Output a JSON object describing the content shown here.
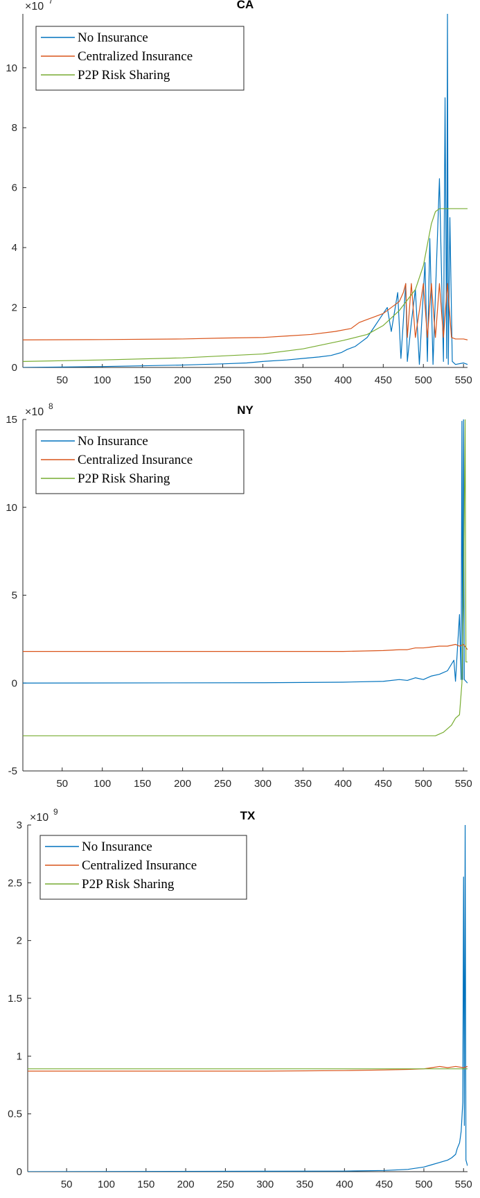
{
  "chart_data": [
    {
      "type": "line",
      "title": "CA",
      "exponent_label": "×10",
      "exponent_power": "7",
      "scale": 10000000,
      "xlim": [
        1,
        555
      ],
      "ylim": [
        0,
        11.8
      ],
      "xticks": [
        50,
        100,
        150,
        200,
        250,
        300,
        350,
        400,
        450,
        500,
        550
      ],
      "yticks": [
        0,
        2,
        4,
        6,
        8,
        10
      ],
      "legend_position": "top-left",
      "series": [
        {
          "name": "No Insurance",
          "color": "#0072BD",
          "x": [
            1,
            100,
            200,
            250,
            280,
            300,
            330,
            350,
            370,
            385,
            398,
            405,
            415,
            420,
            430,
            435,
            440,
            445,
            450,
            455,
            460,
            468,
            472,
            478,
            480,
            485,
            490,
            495,
            502,
            505,
            508,
            512,
            520,
            525,
            527,
            529,
            530,
            531,
            533,
            536,
            540,
            550,
            555
          ],
          "y": [
            0,
            0.03,
            0.08,
            0.12,
            0.15,
            0.2,
            0.25,
            0.3,
            0.35,
            0.4,
            0.5,
            0.6,
            0.7,
            0.8,
            1.0,
            1.2,
            1.4,
            1.6,
            1.8,
            2.0,
            1.2,
            2.5,
            0.3,
            2.8,
            0.2,
            1.5,
            2.6,
            0.1,
            3.5,
            0.2,
            4.3,
            0.1,
            6.3,
            0.2,
            9.0,
            0.3,
            11.8,
            0.1,
            5.0,
            0.2,
            0.1,
            0.15,
            0.1
          ]
        },
        {
          "name": "Centralized Insurance",
          "color": "#D95319",
          "x": [
            1,
            100,
            200,
            250,
            300,
            330,
            360,
            390,
            410,
            420,
            430,
            440,
            450,
            460,
            470,
            475,
            478,
            480,
            485,
            490,
            500,
            505,
            510,
            515,
            520,
            525,
            530,
            535,
            540,
            550,
            555
          ],
          "y": [
            0.92,
            0.93,
            0.95,
            0.98,
            1.0,
            1.05,
            1.1,
            1.2,
            1.3,
            1.5,
            1.6,
            1.7,
            1.8,
            2.0,
            2.2,
            2.5,
            2.8,
            1.0,
            2.8,
            1.0,
            2.8,
            1.0,
            2.8,
            1.0,
            2.8,
            1.0,
            2.8,
            1.0,
            0.95,
            0.95,
            0.92
          ]
        },
        {
          "name": "P2P Risk Sharing",
          "color": "#77AC30",
          "x": [
            1,
            100,
            200,
            300,
            350,
            400,
            430,
            450,
            470,
            490,
            500,
            505,
            510,
            515,
            520,
            555
          ],
          "y": [
            0.2,
            0.25,
            0.32,
            0.45,
            0.62,
            0.9,
            1.1,
            1.4,
            1.9,
            2.6,
            3.4,
            4.1,
            4.8,
            5.2,
            5.3,
            5.3
          ]
        }
      ]
    },
    {
      "type": "line",
      "title": "NY",
      "exponent_label": "×10",
      "exponent_power": "8",
      "scale": 100000000,
      "xlim": [
        1,
        555
      ],
      "ylim": [
        -5,
        15
      ],
      "xticks": [
        50,
        100,
        150,
        200,
        250,
        300,
        350,
        400,
        450,
        500,
        550
      ],
      "yticks": [
        -5,
        0,
        5,
        10,
        15
      ],
      "legend_position": "top-left",
      "series": [
        {
          "name": "No Insurance",
          "color": "#0072BD",
          "x": [
            1,
            300,
            400,
            450,
            470,
            480,
            490,
            500,
            510,
            520,
            530,
            538,
            540,
            545,
            547,
            548,
            549,
            550,
            551,
            555
          ],
          "y": [
            0,
            0.02,
            0.05,
            0.1,
            0.2,
            0.15,
            0.3,
            0.2,
            0.4,
            0.5,
            0.7,
            1.3,
            0.1,
            3.9,
            0.2,
            14.9,
            0.2,
            15,
            0.2,
            0
          ]
        },
        {
          "name": "Centralized Insurance",
          "color": "#D95319",
          "x": [
            1,
            300,
            400,
            450,
            470,
            480,
            490,
            500,
            510,
            520,
            530,
            540,
            545,
            550,
            555
          ],
          "y": [
            1.8,
            1.8,
            1.8,
            1.85,
            1.9,
            1.9,
            2.0,
            2.0,
            2.05,
            2.1,
            2.1,
            2.2,
            2.1,
            2.2,
            1.9
          ]
        },
        {
          "name": "P2P Risk Sharing",
          "color": "#77AC30",
          "x": [
            1,
            500,
            515,
            525,
            535,
            540,
            545,
            548,
            550,
            552,
            553,
            555
          ],
          "y": [
            -3,
            -3,
            -3,
            -2.8,
            -2.4,
            -2.0,
            -1.8,
            0,
            5,
            15,
            1.2,
            1.2
          ]
        }
      ]
    },
    {
      "type": "line",
      "title": "TX",
      "exponent_label": "×10",
      "exponent_power": "9",
      "scale": 1000000000,
      "xlim": [
        1,
        555
      ],
      "ylim": [
        0,
        3
      ],
      "xticks": [
        50,
        100,
        150,
        200,
        250,
        300,
        350,
        400,
        450,
        500,
        550
      ],
      "yticks": [
        0,
        0.5,
        1,
        1.5,
        2,
        2.5,
        3
      ],
      "legend_position": "top-left",
      "series": [
        {
          "name": "No Insurance",
          "color": "#0072BD",
          "x": [
            1,
            400,
            450,
            480,
            500,
            510,
            520,
            530,
            535,
            540,
            542,
            545,
            547,
            549,
            550,
            551,
            552,
            553,
            555
          ],
          "y": [
            0,
            0.005,
            0.01,
            0.02,
            0.04,
            0.06,
            0.08,
            0.1,
            0.12,
            0.15,
            0.2,
            0.25,
            0.35,
            0.6,
            2.55,
            0.4,
            3.0,
            0.1,
            0.05
          ]
        },
        {
          "name": "Centralized Insurance",
          "color": "#D95319",
          "x": [
            1,
            300,
            400,
            450,
            480,
            500,
            510,
            520,
            530,
            540,
            550,
            555
          ],
          "y": [
            0.87,
            0.87,
            0.875,
            0.88,
            0.885,
            0.89,
            0.9,
            0.91,
            0.9,
            0.91,
            0.9,
            0.91
          ]
        },
        {
          "name": "P2P Risk Sharing",
          "color": "#77AC30",
          "x": [
            1,
            300,
            500,
            555
          ],
          "y": [
            0.89,
            0.89,
            0.89,
            0.89
          ]
        }
      ]
    }
  ]
}
